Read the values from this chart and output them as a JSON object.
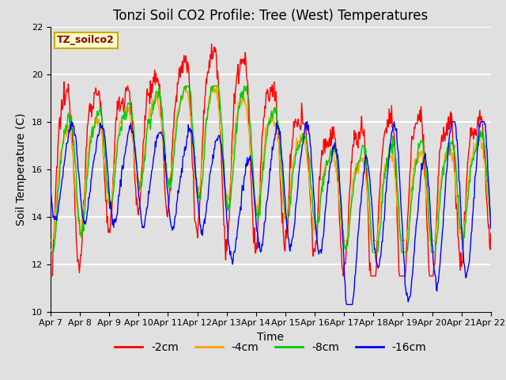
{
  "title": "Tonzi Soil CO2 Profile: Tree (West) Temperatures",
  "xlabel": "Time",
  "ylabel": "Soil Temperature (C)",
  "legend_label": "TZ_soilco2",
  "series_labels": [
    "-2cm",
    "-4cm",
    "-8cm",
    "-16cm"
  ],
  "series_colors": [
    "#ff0000",
    "#ffa500",
    "#00cc00",
    "#0000ff"
  ],
  "ylim": [
    10,
    22
  ],
  "yticks": [
    10,
    12,
    14,
    16,
    18,
    20,
    22
  ],
  "xtick_labels": [
    "Apr 7",
    "Apr 8",
    "Apr 9",
    "Apr 10",
    "Apr 11",
    "Apr 12",
    "Apr 13",
    "Apr 14",
    "Apr 15",
    "Apr 16",
    "Apr 17",
    "Apr 18",
    "Apr 19",
    "Apr 20",
    "Apr 21",
    "Apr 22"
  ],
  "background_color": "#e0e0e0",
  "plot_bg_color": "#e0e0e0",
  "grid_color": "#ffffff",
  "title_fontsize": 12,
  "axis_label_fontsize": 10,
  "tick_fontsize": 8,
  "legend_fontsize": 10,
  "linewidth": 1.0,
  "n_points": 720
}
